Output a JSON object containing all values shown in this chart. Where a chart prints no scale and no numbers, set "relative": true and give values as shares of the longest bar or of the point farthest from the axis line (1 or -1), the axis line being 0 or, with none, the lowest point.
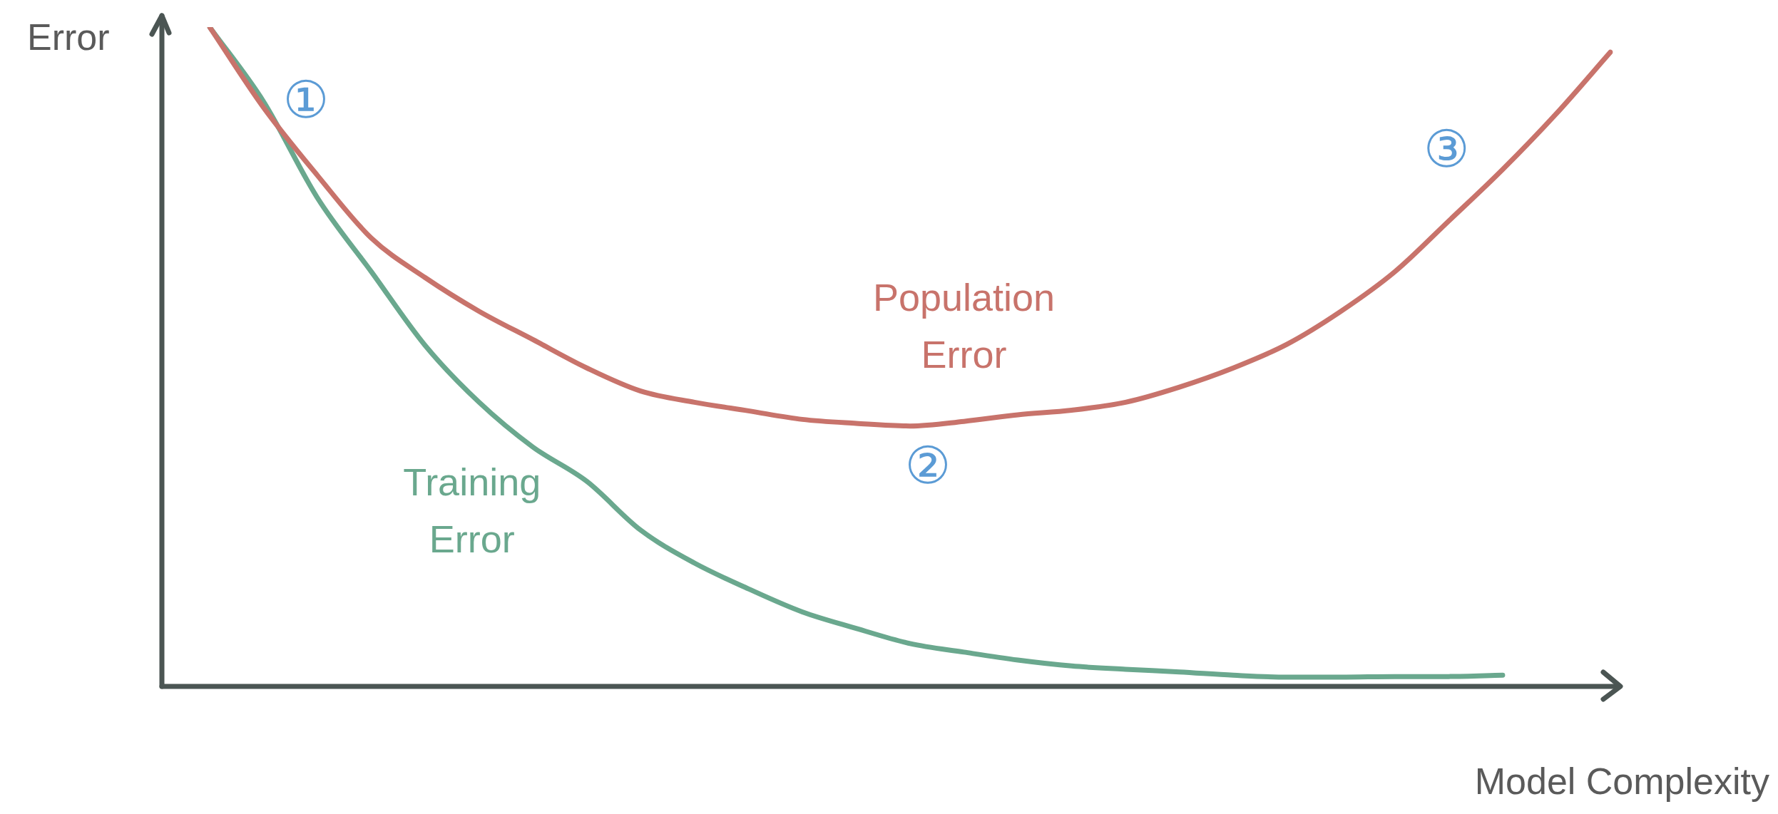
{
  "chart_data": {
    "type": "line",
    "relative": true,
    "xlabel": "Model Complexity",
    "ylabel": "Error",
    "categories": [
      null,
      null,
      null,
      null,
      null,
      null,
      null,
      null,
      null,
      null,
      null,
      null,
      null,
      null,
      null,
      null,
      null,
      null,
      null,
      null,
      null,
      null,
      null,
      null,
      null,
      null,
      null
    ],
    "series": [
      {
        "name": "Population Error",
        "color": "#c8736b",
        "values": [
          1.0,
          0.878,
          0.775,
          0.68,
          0.62,
          0.569,
          0.526,
          0.483,
          0.448,
          0.431,
          0.418,
          0.405,
          0.399,
          0.395,
          0.402,
          0.412,
          0.419,
          0.431,
          0.454,
          0.483,
          0.519,
          0.569,
          0.629,
          0.706,
          0.784,
          0.869,
          0.962
        ]
      },
      {
        "name": "Training Error",
        "color": "#6aa88e",
        "values": [
          1.0,
          0.887,
          0.741,
          0.629,
          0.517,
          0.431,
          0.363,
          0.311,
          0.237,
          0.187,
          0.148,
          0.113,
          0.088,
          0.065,
          0.052,
          0.04,
          0.031,
          0.026,
          0.022,
          0.017,
          0.014,
          0.014,
          0.015,
          0.015,
          0.017,
          null,
          null
        ]
      }
    ],
    "annotations": [
      "①",
      "②",
      "③"
    ]
  }
}
